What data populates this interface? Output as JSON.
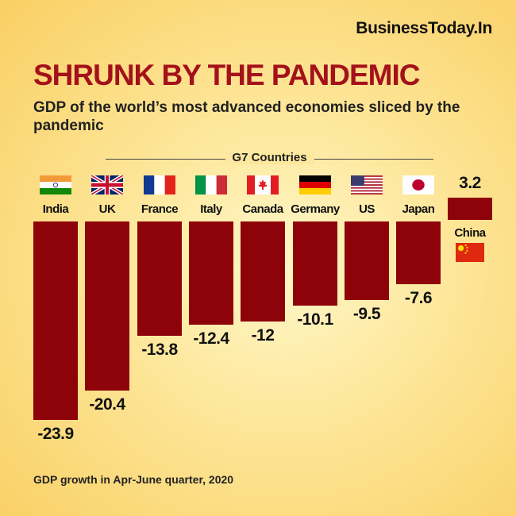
{
  "brand": "BusinessToday.In",
  "footnote": "GDP growth in Apr-June quarter, 2020",
  "colors": {
    "bar": "#8e0209",
    "title": "#a4111b"
  },
  "chart_data": {
    "type": "bar",
    "title": "SHRUNK BY THE PANDEMIC",
    "subtitle": "GDP of the world’s most advanced economies sliced by the pandemic",
    "group_label": "G7 Countries",
    "categories": [
      "India",
      "UK",
      "France",
      "Italy",
      "Canada",
      "Germany",
      "US",
      "Japan",
      "China"
    ],
    "values": [
      -23.9,
      -20.4,
      -13.8,
      -12.4,
      -12,
      -10.1,
      -9.5,
      -7.6,
      3.2
    ],
    "value_labels": [
      "-23.9",
      "-20.4",
      "-13.8",
      "-12.4",
      "-12",
      "-10.1",
      "-9.5",
      "-7.6",
      "3.2"
    ],
    "flags": [
      "india-flag-icon",
      "uk-flag-icon",
      "france-flag-icon",
      "italy-flag-icon",
      "canada-flag-icon",
      "germany-flag-icon",
      "us-flag-icon",
      "japan-flag-icon",
      "china-flag-icon"
    ],
    "xlabel": "",
    "ylabel": "",
    "ylim": [
      -23.9,
      3.2
    ],
    "grid": false
  }
}
